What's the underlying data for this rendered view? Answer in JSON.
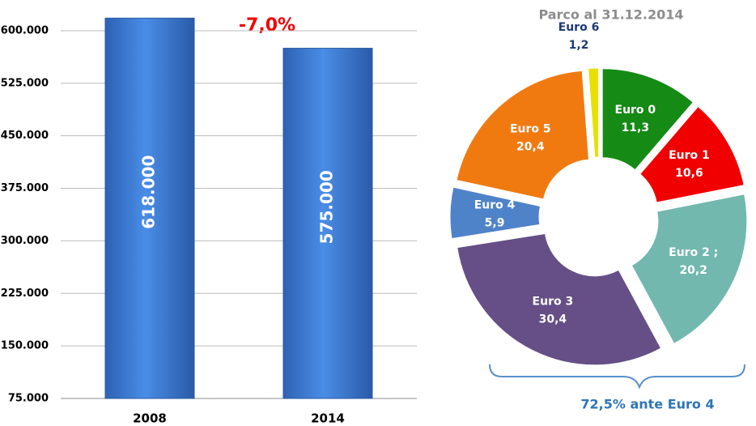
{
  "chart_data": [
    {
      "type": "bar",
      "categories": [
        "2008",
        "2014"
      ],
      "values": [
        618000,
        575000
      ],
      "value_labels": [
        "618.000",
        "575.000"
      ],
      "color": "#3f7fd6",
      "annotations": [
        "-7,0%"
      ],
      "ylim": [
        75000,
        630000
      ],
      "yticks": [
        {
          "value": 75000,
          "label": "75.000"
        },
        {
          "value": 150000,
          "label": "150.000"
        },
        {
          "value": 225000,
          "label": "225.000"
        },
        {
          "value": 300000,
          "label": "300.000"
        },
        {
          "value": 375000,
          "label": "375.000"
        },
        {
          "value": 450000,
          "label": "450.000"
        },
        {
          "value": 525000,
          "label": "525.000"
        },
        {
          "value": 600000,
          "label": "600.000"
        }
      ],
      "grid": true
    },
    {
      "type": "donut",
      "title": "Parco al 31.12.2014",
      "categories": [
        "Euro 0",
        "Euro 1",
        "Euro 2 ;",
        "Euro 3",
        "Euro 4",
        "Euro 5",
        "Euro 6"
      ],
      "values": [
        11.3,
        10.6,
        20.2,
        30.4,
        5.9,
        20.4,
        1.2
      ],
      "value_labels": [
        "11,3",
        "10,6",
        "20,2",
        "30,4",
        "5,9",
        "20,4",
        "1,2"
      ],
      "colors": [
        "#158a15",
        "#f00000",
        "#72b8ae",
        "#654f86",
        "#4f83c9",
        "#f07a10",
        "#e8e000"
      ],
      "annotations": [
        "72,5% ante Euro 4"
      ]
    }
  ]
}
